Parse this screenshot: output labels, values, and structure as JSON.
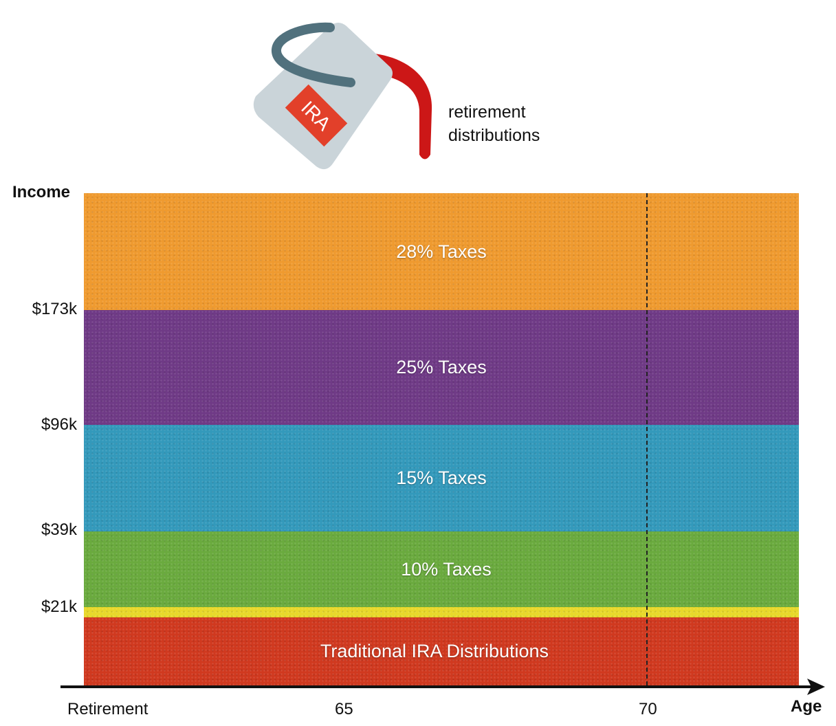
{
  "logo": {
    "bucket_label": "IRA",
    "caption_line1": "retirement",
    "caption_line2": "distributions"
  },
  "y_axis": {
    "title": "Income",
    "ticks": [
      "$173k",
      "$96k",
      "$39k",
      "$21k"
    ]
  },
  "bands": [
    {
      "label": "28% Taxes",
      "color": "#ef9a2f"
    },
    {
      "label": "25% Taxes",
      "color": "#6f3a86"
    },
    {
      "label": "15% Taxes",
      "color": "#3399bb"
    },
    {
      "label": "10% Taxes",
      "color": "#6aaa3e"
    },
    {
      "label": "",
      "color": "#e8d82a"
    },
    {
      "label": "Traditional IRA Distributions",
      "color": "#d0391f"
    }
  ],
  "x_axis": {
    "title": "Age",
    "ticks": [
      "Retirement",
      "65",
      "70"
    ]
  }
}
